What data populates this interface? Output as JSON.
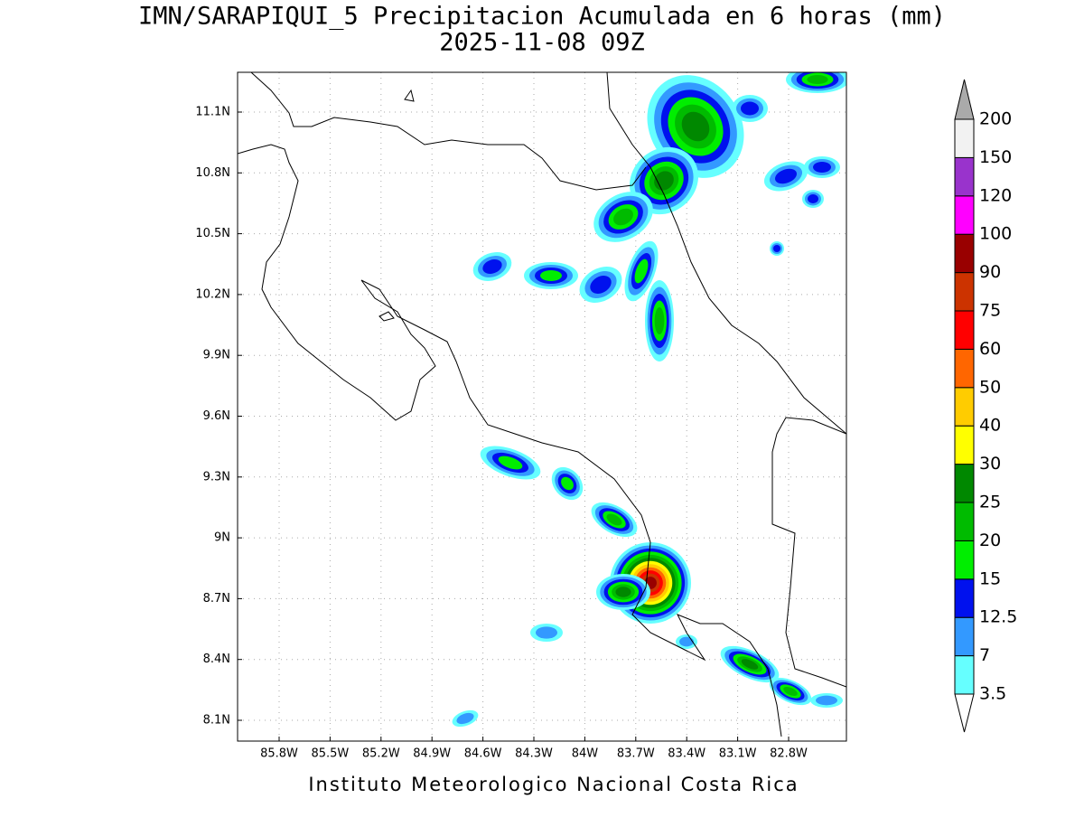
{
  "title": "IMN/SARAPIQUI_5 Precipitacion Acumulada en 6 horas (mm)",
  "subtitle": "2025-11-08 09Z",
  "footer": "Instituto Meteorologico Nacional Costa Rica",
  "map": {
    "lat_labels": [
      "11.1N",
      "10.8N",
      "10.5N",
      "10.2N",
      "9.9N",
      "9.6N",
      "9.3N",
      "9N",
      "8.7N",
      "8.4N",
      "8.1N"
    ],
    "lon_labels": [
      "85.8W",
      "85.5W",
      "85.2W",
      "84.9W",
      "84.6W",
      "84.3W",
      "84W",
      "83.7W",
      "83.4W",
      "83.1W",
      "82.8W"
    ]
  },
  "colorbar": {
    "levels": [
      3.5,
      7,
      12.5,
      15,
      20,
      25,
      30,
      40,
      50,
      60,
      75,
      90,
      100,
      120,
      150,
      200
    ],
    "colors": [
      "#66ffff",
      "#3399ff",
      "#0011ee",
      "#00ee00",
      "#00bb00",
      "#008800",
      "#ffff00",
      "#ffcc00",
      "#ff6600",
      "#ff0000",
      "#cc3300",
      "#990000",
      "#ff00ff",
      "#9933cc",
      "#f2f2f2"
    ],
    "below_color": "#ffffff",
    "above_color": "#aaaaaa"
  }
}
